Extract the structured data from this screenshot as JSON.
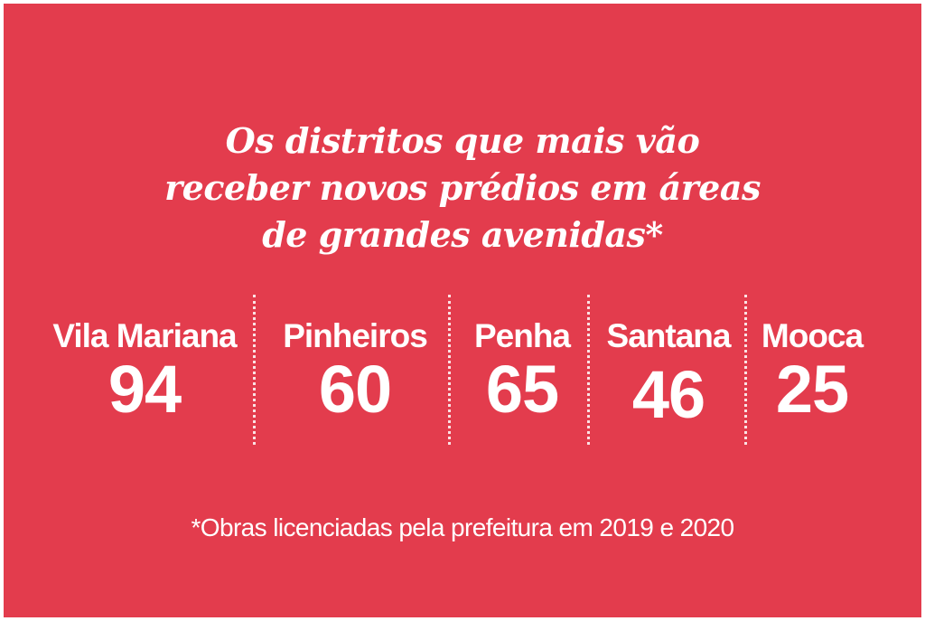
{
  "colors": {
    "background": "#e33c4d",
    "text": "#ffffff"
  },
  "chart_data": {
    "type": "table",
    "title": "Os distritos que mais vão receber novos prédios em áreas de grandes avenidas*",
    "title_lines": [
      "Os distritos que mais vão",
      "receber novos prédios em áreas",
      "de grandes avenidas*"
    ],
    "categories": [
      "Vila Mariana",
      "Pinheiros",
      "Penha",
      "Santana",
      "Mooca"
    ],
    "values": [
      94,
      60,
      65,
      46,
      25
    ],
    "footnote": "*Obras licenciadas pela prefeitura em 2019 e 2020"
  }
}
